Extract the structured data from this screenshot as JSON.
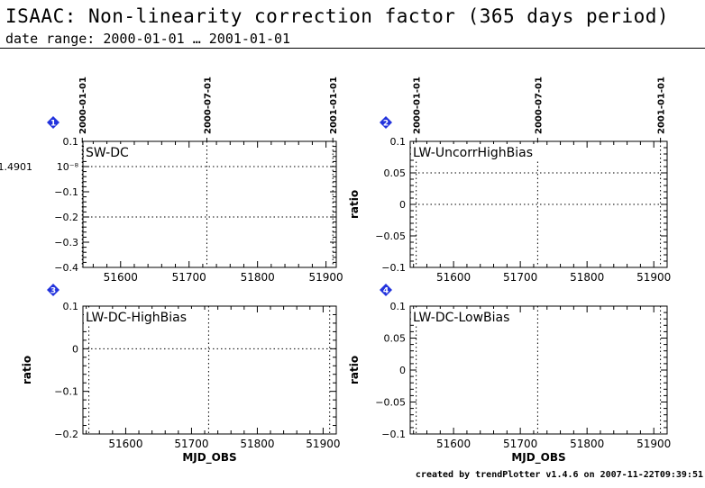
{
  "header": {
    "title": "ISAAC: Non-linearity correction factor (365 days period)",
    "subtitle": "date range: 2000-01-01 … 2001-01-01"
  },
  "footer": {
    "credit": "created by trendPlotter v1.4.6 on 2007-11-22T09:39:51"
  },
  "colors": {
    "axis": "#000000",
    "badge": "#2233dd",
    "background": "#ffffff"
  },
  "chart_data": [
    {
      "type": "line",
      "panel": "1",
      "title": "SW-DC",
      "xlabel": "",
      "ylabel": "",
      "y_offset_label": "1.4901",
      "xlim": [
        51545,
        51915
      ],
      "ylim": [
        -0.4,
        0.1
      ],
      "xticks": [
        51600,
        51700,
        51800,
        51900
      ],
      "yticks": [
        {
          "value": 0.1,
          "label": "0.1"
        },
        {
          "value": 0.0,
          "label": "10⁻⁸"
        },
        {
          "value": -0.1,
          "label": "−0.1"
        },
        {
          "value": -0.2,
          "label": "−0.2"
        },
        {
          "value": -0.3,
          "label": "−0.3"
        },
        {
          "value": -0.4,
          "label": "−0.4"
        }
      ],
      "hlines": [
        0.0,
        -0.2
      ],
      "date_markers": [
        {
          "x": 51544,
          "label": "2000-01-01"
        },
        {
          "x": 51726,
          "label": "2000-07-01"
        },
        {
          "x": 51910,
          "label": "2001-01-01"
        }
      ],
      "series": []
    },
    {
      "type": "line",
      "panel": "2",
      "title": "LW-UncorrHighBias",
      "xlabel": "",
      "ylabel": "ratio",
      "xlim": [
        51535,
        51920
      ],
      "ylim": [
        -0.1,
        0.1
      ],
      "xticks": [
        51600,
        51700,
        51800,
        51900
      ],
      "yticks": [
        {
          "value": 0.1,
          "label": "0.1"
        },
        {
          "value": 0.05,
          "label": "0.05"
        },
        {
          "value": 0.0,
          "label": "0"
        },
        {
          "value": -0.05,
          "label": "−0.05"
        },
        {
          "value": -0.1,
          "label": "−0.1"
        }
      ],
      "hlines": [
        0.05,
        0.0
      ],
      "date_markers": [
        {
          "x": 51544,
          "label": "2000-01-01"
        },
        {
          "x": 51726,
          "label": "2000-07-01"
        },
        {
          "x": 51910,
          "label": "2001-01-01"
        }
      ],
      "series": []
    },
    {
      "type": "line",
      "panel": "3",
      "title": "LW-DC-HighBias",
      "xlabel": "MJD_OBS",
      "ylabel": "ratio",
      "xlim": [
        51535,
        51920
      ],
      "ylim": [
        -0.2,
        0.1
      ],
      "xticks": [
        51600,
        51700,
        51800,
        51900
      ],
      "yticks": [
        {
          "value": 0.1,
          "label": "0.1"
        },
        {
          "value": 0.0,
          "label": "0"
        },
        {
          "value": -0.1,
          "label": "−0.1"
        },
        {
          "value": -0.2,
          "label": "−0.2"
        }
      ],
      "hlines": [
        0.0
      ],
      "date_markers": [
        {
          "x": 51544,
          "label": ""
        },
        {
          "x": 51726,
          "label": ""
        },
        {
          "x": 51910,
          "label": ""
        }
      ],
      "series": []
    },
    {
      "type": "line",
      "panel": "4",
      "title": "LW-DC-LowBias",
      "xlabel": "MJD_OBS",
      "ylabel": "ratio",
      "xlim": [
        51535,
        51920
      ],
      "ylim": [
        -0.1,
        0.1
      ],
      "xticks": [
        51600,
        51700,
        51800,
        51900
      ],
      "yticks": [
        {
          "value": 0.1,
          "label": "0.1"
        },
        {
          "value": 0.05,
          "label": "0.05"
        },
        {
          "value": 0.0,
          "label": "0"
        },
        {
          "value": -0.05,
          "label": "−0.05"
        },
        {
          "value": -0.1,
          "label": "−0.1"
        }
      ],
      "hlines": [],
      "date_markers": [
        {
          "x": 51544,
          "label": ""
        },
        {
          "x": 51726,
          "label": ""
        },
        {
          "x": 51910,
          "label": ""
        }
      ],
      "series": []
    }
  ]
}
